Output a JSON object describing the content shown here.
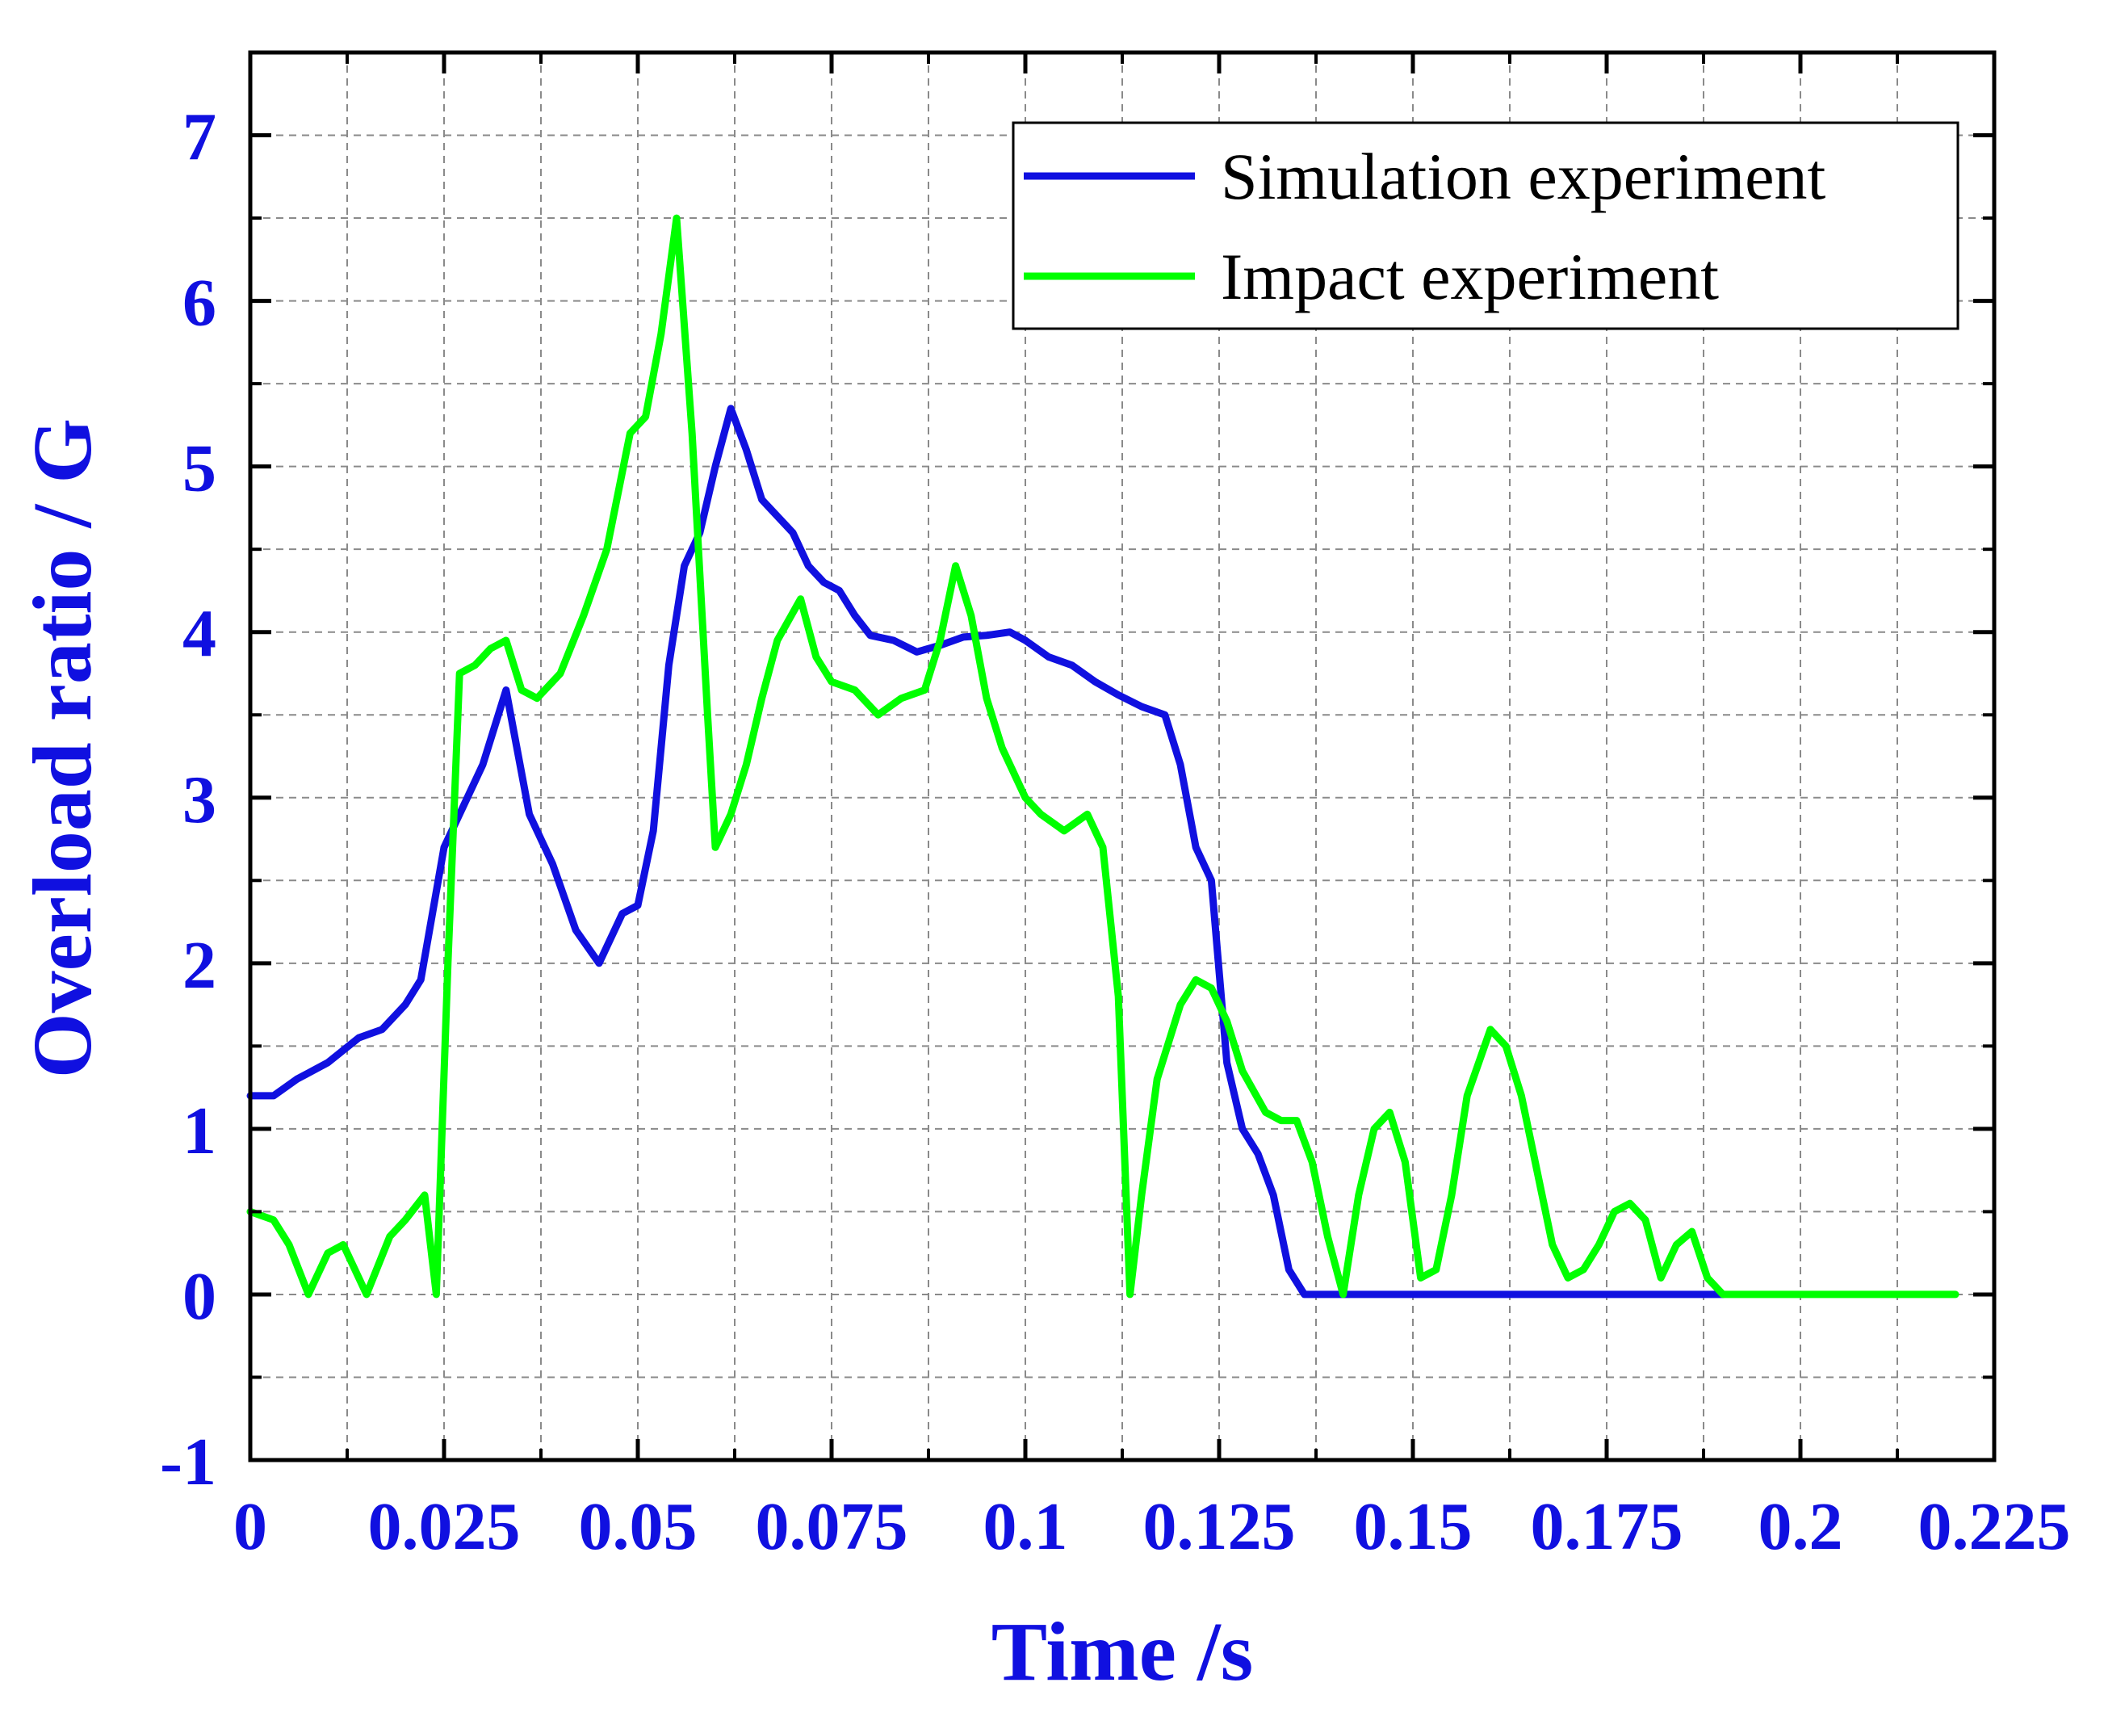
{
  "chart_data": {
    "type": "line",
    "title": "",
    "xlabel": "Time /s",
    "ylabel": "Overload ratio / G",
    "xlim": [
      0,
      0.225
    ],
    "ylim": [
      -1,
      7.5
    ],
    "x_ticks": [
      0,
      0.025,
      0.05,
      0.075,
      0.1,
      0.125,
      0.15,
      0.175,
      0.2,
      0.225
    ],
    "x_tick_labels": [
      "0",
      "0.025",
      "0.05",
      "0.075",
      "0.1",
      "0.125",
      "0.15",
      "0.175",
      "0.2",
      "0.225"
    ],
    "y_ticks": [
      -1,
      0,
      1,
      2,
      3,
      4,
      5,
      6,
      7
    ],
    "y_tick_labels": [
      "-1",
      "0",
      "1",
      "2",
      "3",
      "4",
      "5",
      "6",
      "7"
    ],
    "grid": true,
    "legend_position": "top-right",
    "series": [
      {
        "name": "Simulation experiment",
        "color": "#1010e0",
        "x": [
          0,
          0.003,
          0.006,
          0.01,
          0.014,
          0.017,
          0.02,
          0.022,
          0.025,
          0.028,
          0.03,
          0.033,
          0.036,
          0.039,
          0.042,
          0.045,
          0.048,
          0.05,
          0.052,
          0.054,
          0.056,
          0.058,
          0.06,
          0.062,
          0.064,
          0.066,
          0.068,
          0.07,
          0.072,
          0.074,
          0.076,
          0.078,
          0.08,
          0.083,
          0.086,
          0.089,
          0.092,
          0.095,
          0.098,
          0.1,
          0.103,
          0.106,
          0.109,
          0.112,
          0.115,
          0.118,
          0.12,
          0.122,
          0.124,
          0.126,
          0.128,
          0.13,
          0.132,
          0.134,
          0.136,
          0.14,
          0.15,
          0.16,
          0.17,
          0.18,
          0.19
        ],
        "y": [
          1.2,
          1.2,
          1.3,
          1.4,
          1.55,
          1.6,
          1.75,
          1.9,
          2.7,
          3.0,
          3.2,
          3.65,
          2.9,
          2.6,
          2.2,
          2.0,
          2.3,
          2.35,
          2.8,
          3.8,
          4.4,
          4.6,
          5.0,
          5.35,
          5.1,
          4.8,
          4.7,
          4.6,
          4.4,
          4.3,
          4.25,
          4.1,
          3.98,
          3.95,
          3.88,
          3.92,
          3.97,
          3.98,
          4.0,
          3.95,
          3.85,
          3.8,
          3.7,
          3.62,
          3.55,
          3.5,
          3.2,
          2.7,
          2.5,
          1.4,
          1.0,
          0.85,
          0.6,
          0.15,
          0.0,
          0.0,
          0.0,
          0.0,
          0.0,
          0.0,
          0.0
        ]
      },
      {
        "name": "Impact experiment",
        "color": "#00ff00",
        "x": [
          0,
          0.003,
          0.005,
          0.0075,
          0.01,
          0.012,
          0.015,
          0.018,
          0.02,
          0.0225,
          0.024,
          0.0255,
          0.027,
          0.029,
          0.031,
          0.033,
          0.035,
          0.037,
          0.04,
          0.043,
          0.046,
          0.049,
          0.051,
          0.053,
          0.055,
          0.057,
          0.059,
          0.06,
          0.062,
          0.064,
          0.066,
          0.068,
          0.071,
          0.073,
          0.075,
          0.078,
          0.081,
          0.084,
          0.087,
          0.089,
          0.091,
          0.093,
          0.095,
          0.097,
          0.1,
          0.102,
          0.105,
          0.108,
          0.11,
          0.112,
          0.1135,
          0.115,
          0.117,
          0.12,
          0.122,
          0.124,
          0.126,
          0.128,
          0.131,
          0.133,
          0.135,
          0.137,
          0.139,
          0.141,
          0.143,
          0.145,
          0.147,
          0.149,
          0.151,
          0.153,
          0.155,
          0.157,
          0.16,
          0.162,
          0.164,
          0.166,
          0.168,
          0.17,
          0.172,
          0.174,
          0.176,
          0.178,
          0.18,
          0.182,
          0.184,
          0.186,
          0.188,
          0.19,
          0.2,
          0.21,
          0.22
        ],
        "y": [
          0.5,
          0.45,
          0.3,
          0.0,
          0.25,
          0.3,
          0.0,
          0.35,
          0.45,
          0.6,
          0.0,
          2.0,
          3.75,
          3.8,
          3.9,
          3.95,
          3.65,
          3.6,
          3.75,
          4.1,
          4.5,
          5.2,
          5.3,
          5.8,
          6.5,
          5.2,
          3.5,
          2.7,
          2.9,
          3.2,
          3.6,
          3.95,
          4.2,
          3.85,
          3.7,
          3.65,
          3.5,
          3.6,
          3.65,
          3.95,
          4.4,
          4.1,
          3.6,
          3.3,
          3.0,
          2.9,
          2.8,
          2.9,
          2.7,
          1.8,
          0.0,
          0.6,
          1.3,
          1.75,
          1.9,
          1.85,
          1.65,
          1.35,
          1.1,
          1.05,
          1.05,
          0.8,
          0.35,
          0.0,
          0.6,
          1.0,
          1.1,
          0.8,
          0.1,
          0.15,
          0.6,
          1.2,
          1.6,
          1.5,
          1.2,
          0.75,
          0.3,
          0.1,
          0.15,
          0.3,
          0.5,
          0.55,
          0.45,
          0.1,
          0.3,
          0.38,
          0.1,
          0.0,
          0.0,
          0.0,
          0.0
        ]
      }
    ]
  }
}
